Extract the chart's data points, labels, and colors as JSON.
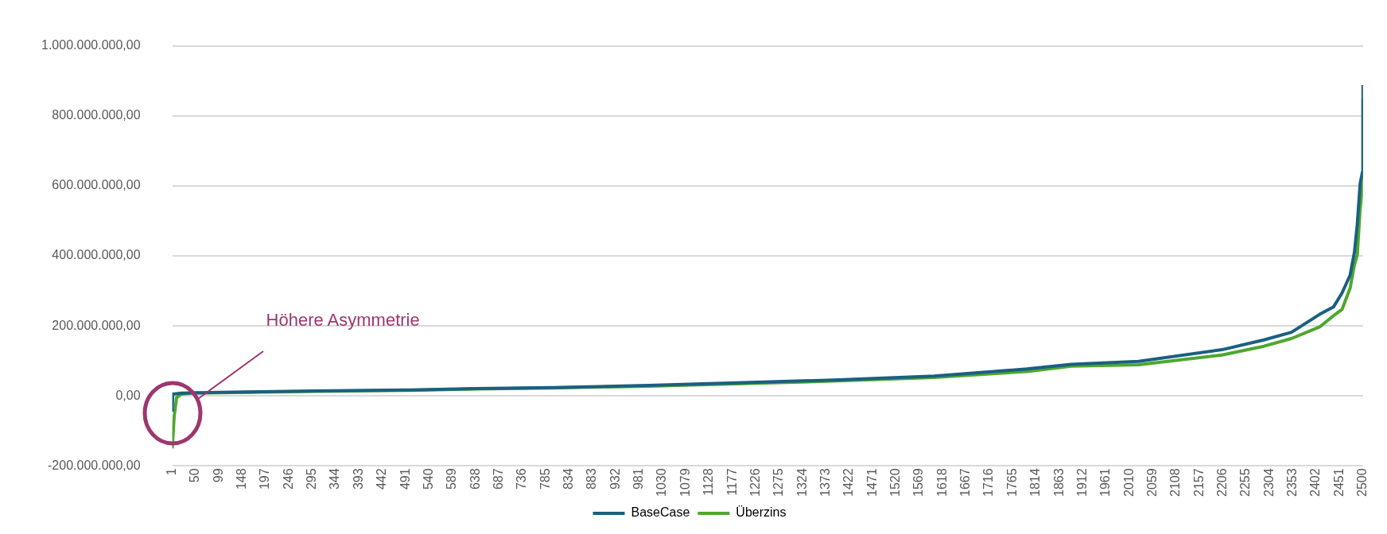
{
  "chart_data": {
    "type": "line",
    "xlim": [
      1,
      2500
    ],
    "xticks": [
      1,
      50,
      99,
      148,
      197,
      246,
      295,
      344,
      393,
      442,
      491,
      540,
      589,
      638,
      687,
      736,
      785,
      834,
      883,
      932,
      981,
      1030,
      1079,
      1128,
      1177,
      1226,
      1275,
      1324,
      1373,
      1422,
      1471,
      1520,
      1569,
      1618,
      1667,
      1716,
      1765,
      1814,
      1863,
      1912,
      1961,
      2010,
      2059,
      2108,
      2157,
      2206,
      2255,
      2304,
      2353,
      2402,
      2451,
      2500
    ],
    "ylim": [
      -200000000,
      1000000000
    ],
    "yticks": [
      {
        "value": -200000000,
        "label": "-200.000.000,00"
      },
      {
        "value": 0,
        "label": "0,00"
      },
      {
        "value": 200000000,
        "label": "200.000.000,00"
      },
      {
        "value": 400000000,
        "label": "400.000.000,00"
      },
      {
        "value": 600000000,
        "label": "600.000.000,00"
      },
      {
        "value": 800000000,
        "label": "800.000.000,00"
      },
      {
        "value": 1000000000,
        "label": "1.000.000.000,00"
      }
    ],
    "grid": "y",
    "legend": "bottom",
    "line_style": "solid",
    "series": [
      {
        "name": "BaseCase",
        "color": "#1a6080",
        "x": [
          1,
          2,
          20,
          50,
          100,
          300,
          500,
          637,
          800,
          1000,
          1200,
          1400,
          1600,
          1795,
          1888,
          2029,
          2204,
          2292,
          2350,
          2409,
          2438,
          2456,
          2473,
          2482,
          2488,
          2494,
          2499,
          2500
        ],
        "values": [
          -45000000,
          5000000,
          8000000,
          9000000,
          10000000,
          14000000,
          17000000,
          21000000,
          24000000,
          30000000,
          38000000,
          46000000,
          57000000,
          77000000,
          90000000,
          99000000,
          132000000,
          160000000,
          182000000,
          233000000,
          254000000,
          294000000,
          345000000,
          410000000,
          490000000,
          606000000,
          640000000,
          888000000
        ]
      },
      {
        "name": "Überzins",
        "color": "#4ea72e",
        "x": [
          1,
          5,
          10,
          20,
          40,
          100,
          300,
          500,
          637,
          800,
          1000,
          1200,
          1400,
          1600,
          1795,
          1888,
          2029,
          2204,
          2292,
          2350,
          2409,
          2438,
          2456,
          2473,
          2482,
          2488,
          2494,
          2499,
          2500
        ],
        "values": [
          -150000000,
          -60000000,
          -5000000,
          5000000,
          8000000,
          9000000,
          13000000,
          16000000,
          20000000,
          23000000,
          28000000,
          35000000,
          43000000,
          53000000,
          70000000,
          85000000,
          89000000,
          117000000,
          142000000,
          164000000,
          197000000,
          229000000,
          247000000,
          308000000,
          374000000,
          403000000,
          533000000,
          600000000,
          849000000
        ]
      }
    ],
    "annotations": [
      "Höhere Asymmetrie"
    ]
  }
}
